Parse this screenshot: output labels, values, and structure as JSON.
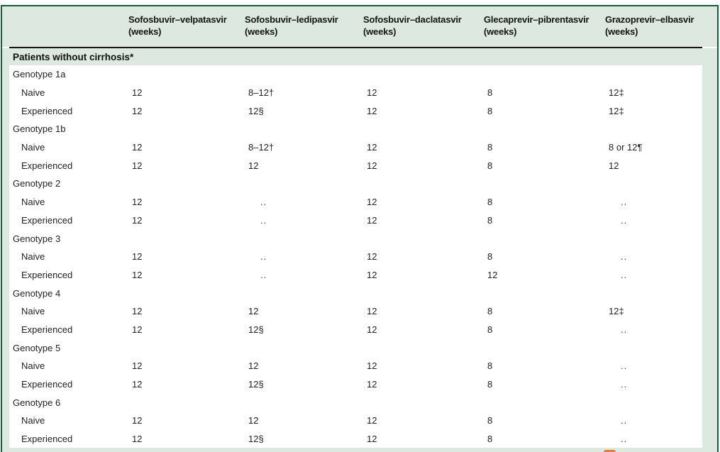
{
  "table": {
    "section_header": "Patients without cirrhosis*",
    "columns": [
      {
        "name": "Sofosbuvir–velpatasvir",
        "unit": "(weeks)"
      },
      {
        "name": "Sofosbuvir–ledipasvir",
        "unit": "(weeks)"
      },
      {
        "name": "Sofosbuvir–daclatasvir",
        "unit": "(weeks)"
      },
      {
        "name": "Glecaprevir–pibrentasvir",
        "unit": "(weeks)"
      },
      {
        "name": "Grazoprevir–elbasvir",
        "unit": "(weeks)"
      }
    ],
    "groups": [
      {
        "label": "Genotype 1a",
        "rows": [
          {
            "label": "Naive",
            "values": [
              "12",
              "8–12†",
              "12",
              "8",
              "12‡"
            ]
          },
          {
            "label": "Experienced",
            "values": [
              "12",
              "12§",
              "12",
              "8",
              "12‡"
            ]
          }
        ]
      },
      {
        "label": "Genotype 1b",
        "rows": [
          {
            "label": "Naive",
            "values": [
              "12",
              "8–12†",
              "12",
              "8",
              "8 or 12¶"
            ]
          },
          {
            "label": "Experienced",
            "values": [
              "12",
              "12",
              "12",
              "8",
              "12"
            ]
          }
        ]
      },
      {
        "label": "Genotype 2",
        "rows": [
          {
            "label": "Naive",
            "values": [
              "12",
              "..",
              "12",
              "8",
              ".."
            ]
          },
          {
            "label": "Experienced",
            "values": [
              "12",
              "..",
              "12",
              "8",
              ".."
            ]
          }
        ]
      },
      {
        "label": "Genotype 3",
        "rows": [
          {
            "label": "Naive",
            "values": [
              "12",
              "..",
              "12",
              "8",
              ".."
            ]
          },
          {
            "label": "Experienced",
            "values": [
              "12",
              "..",
              "12",
              "12",
              ".."
            ]
          }
        ]
      },
      {
        "label": "Genotype 4",
        "rows": [
          {
            "label": "Naive",
            "values": [
              "12",
              "12",
              "12",
              "8",
              "12‡"
            ]
          },
          {
            "label": "Experienced",
            "values": [
              "12",
              "12§",
              "12",
              "8",
              ".."
            ]
          }
        ]
      },
      {
        "label": "Genotype 5",
        "rows": [
          {
            "label": "Naive",
            "values": [
              "12",
              "12",
              "12",
              "8",
              ".."
            ]
          },
          {
            "label": "Experienced",
            "values": [
              "12",
              "12§",
              "12",
              "8",
              ".."
            ]
          }
        ]
      },
      {
        "label": "Genotype 6",
        "rows": [
          {
            "label": "Naive",
            "values": [
              "12",
              "12",
              "12",
              "8",
              ".."
            ]
          },
          {
            "label": "Experienced",
            "values": [
              "12",
              "12§",
              "12",
              "8",
              ".."
            ]
          }
        ]
      }
    ],
    "colors": {
      "band_green": "#dde8e1",
      "border_green": "#175b3c",
      "rule_black": "#161616",
      "cutoff_mark_orange": "#e87a3b"
    }
  }
}
